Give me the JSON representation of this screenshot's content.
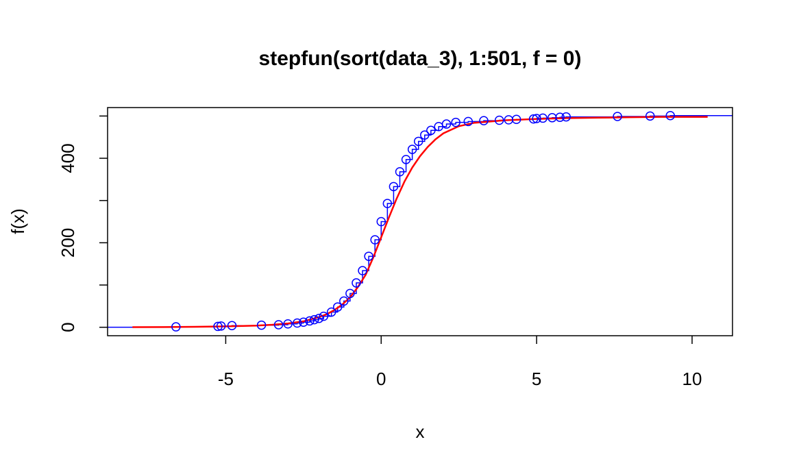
{
  "chart_data": {
    "type": "scatter",
    "title": "stepfun(sort(data_3), 1:501, f = 0)",
    "xlabel": "x",
    "ylabel": "f(x)",
    "xlim": [
      -8.8,
      11.3
    ],
    "ylim": [
      -20,
      520
    ],
    "xticks": [
      -5,
      0,
      5,
      10
    ],
    "xtick_labels": [
      "-5",
      "0",
      "5",
      "10"
    ],
    "yticks": [
      0,
      100,
      200,
      300,
      400,
      500
    ],
    "ytick_labels": [
      "0",
      "",
      "200",
      "",
      "400",
      ""
    ],
    "grid": false,
    "legend": "none",
    "series": [
      {
        "kind": "step",
        "color": "#0000FF",
        "points": [
          [
            -6.6,
            1
          ],
          [
            -5.25,
            2
          ],
          [
            -5.15,
            3
          ],
          [
            -4.8,
            4
          ],
          [
            -3.85,
            5
          ],
          [
            -3.3,
            6
          ],
          [
            -3.0,
            8
          ],
          [
            -2.7,
            10
          ],
          [
            -2.5,
            12
          ],
          [
            -2.3,
            15
          ],
          [
            -2.15,
            18
          ],
          [
            -2.0,
            21
          ],
          [
            -1.85,
            26
          ],
          [
            -1.6,
            36
          ],
          [
            -1.4,
            48
          ],
          [
            -1.2,
            62
          ],
          [
            -1.0,
            80
          ],
          [
            -0.8,
            105
          ],
          [
            -0.6,
            134
          ],
          [
            -0.4,
            168
          ],
          [
            -0.2,
            207
          ],
          [
            0.0,
            250
          ],
          [
            0.2,
            293
          ],
          [
            0.4,
            333
          ],
          [
            0.6,
            368
          ],
          [
            0.8,
            397
          ],
          [
            1.0,
            421
          ],
          [
            1.2,
            440
          ],
          [
            1.4,
            455
          ],
          [
            1.6,
            466
          ],
          [
            1.85,
            475
          ],
          [
            2.1,
            481
          ],
          [
            2.4,
            485
          ],
          [
            2.8,
            487
          ],
          [
            3.3,
            489
          ],
          [
            3.8,
            490
          ],
          [
            4.1,
            491
          ],
          [
            4.35,
            492
          ],
          [
            4.9,
            493
          ],
          [
            5.0,
            494
          ],
          [
            5.2,
            495
          ],
          [
            5.5,
            496
          ],
          [
            5.75,
            497
          ],
          [
            5.95,
            498
          ],
          [
            7.6,
            499
          ],
          [
            8.65,
            500
          ],
          [
            9.3,
            501
          ]
        ],
        "xrange": [
          -8.8,
          11.3
        ]
      },
      {
        "kind": "curve",
        "color": "#FF0000",
        "x": [
          -8.0,
          -7.0,
          -6.0,
          -5.0,
          -4.0,
          -3.5,
          -3.0,
          -2.5,
          -2.0,
          -1.75,
          -1.5,
          -1.25,
          -1.0,
          -0.75,
          -0.5,
          -0.25,
          0.0,
          0.25,
          0.5,
          0.75,
          1.0,
          1.25,
          1.5,
          1.75,
          2.0,
          2.5,
          3.0,
          4.0,
          5.0,
          6.0,
          7.0,
          8.0,
          9.0,
          10.5
        ],
        "y": [
          0.3,
          0.5,
          1,
          2,
          4,
          6,
          9,
          14,
          24,
          31,
          41,
          54,
          71,
          95,
          124,
          166,
          213,
          260,
          305,
          345,
          378,
          405,
          427,
          445,
          459,
          476,
          484,
          490,
          493,
          495,
          496,
          497,
          498,
          498
        ]
      }
    ]
  }
}
